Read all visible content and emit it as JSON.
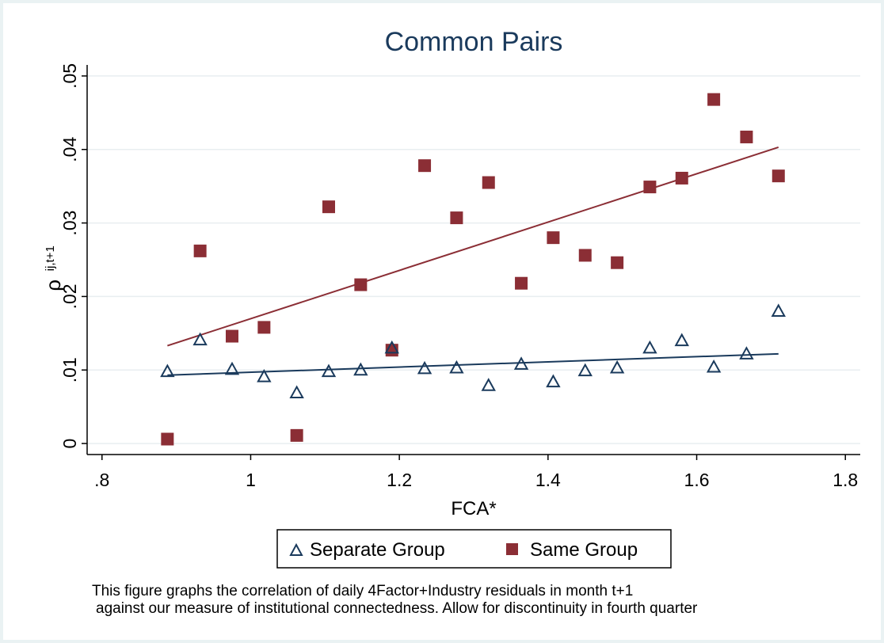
{
  "chart_data": {
    "type": "scatter",
    "title": "Common Pairs",
    "xlabel": "FCA*",
    "ylabel_main": "ρ",
    "ylabel_sub": "ij,t+1",
    "xlim": [
      0.78,
      1.82
    ],
    "ylim": [
      -0.0015,
      0.0515
    ],
    "x_ticks": [
      0.8,
      1.0,
      1.2,
      1.4,
      1.6,
      1.8
    ],
    "x_tick_labels": [
      ".8",
      "1",
      "1.2",
      "1.4",
      "1.6",
      "1.8"
    ],
    "y_ticks": [
      0,
      0.01,
      0.02,
      0.03,
      0.04,
      0.05
    ],
    "y_tick_labels": [
      "0",
      ".01",
      ".02",
      ".03",
      ".04",
      ".05"
    ],
    "grid": true,
    "legend_position": "bottom",
    "series": [
      {
        "name": "Separate Group",
        "marker": "hollow-triangle",
        "color": "#1a3a5c",
        "x": [
          0.888,
          0.932,
          0.975,
          1.018,
          1.062,
          1.105,
          1.148,
          1.19,
          1.234,
          1.277,
          1.32,
          1.364,
          1.407,
          1.45,
          1.493,
          1.537,
          1.58,
          1.623,
          1.667,
          1.71
        ],
        "y": [
          0.0098,
          0.0141,
          0.0101,
          0.0091,
          0.0069,
          0.0098,
          0.01,
          0.013,
          0.0102,
          0.0103,
          0.0079,
          0.0108,
          0.0084,
          0.0099,
          0.0103,
          0.013,
          0.014,
          0.0104,
          0.0122,
          0.018
        ],
        "fit": [
          [
            0.888,
            0.0093
          ],
          [
            1.71,
            0.0122
          ]
        ]
      },
      {
        "name": "Same Group",
        "marker": "filled-square",
        "color": "#8b2e35",
        "x": [
          0.888,
          0.932,
          0.975,
          1.018,
          1.062,
          1.105,
          1.148,
          1.19,
          1.234,
          1.277,
          1.32,
          1.364,
          1.407,
          1.45,
          1.493,
          1.537,
          1.58,
          1.623,
          1.667,
          1.71
        ],
        "y": [
          0.0006,
          0.0262,
          0.0146,
          0.0158,
          0.0011,
          0.0322,
          0.0216,
          0.0127,
          0.0378,
          0.0307,
          0.0355,
          0.0218,
          0.028,
          0.0256,
          0.0246,
          0.0349,
          0.0361,
          0.0468,
          0.0417,
          0.0364
        ],
        "fit": [
          [
            0.888,
            0.0133
          ],
          [
            1.71,
            0.0403
          ]
        ]
      }
    ]
  },
  "note": {
    "line1": "This figure graphs the correlation of daily 4Factor+Industry residuals in month t+1",
    "line2": "against our measure of institutional connectedness. Allow for discontinuity in fourth quarter"
  }
}
